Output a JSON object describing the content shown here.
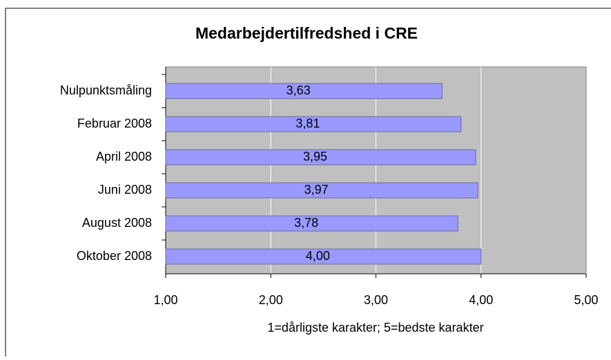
{
  "chart_data": {
    "type": "hbar",
    "title": "Medarbejdertilfredshed i CRE",
    "x_label": "1=dårligste karakter; 5=bedste karakter",
    "categories": [
      "Nulpunktsmåling",
      "Februar 2008",
      "April 2008",
      "Juni 2008",
      "August 2008",
      "Oktober 2008"
    ],
    "values": [
      3.63,
      3.81,
      3.95,
      3.97,
      3.78,
      4.0
    ],
    "value_labels": [
      "3,63",
      "3,81",
      "3,95",
      "3,97",
      "3,78",
      "4,00"
    ],
    "color": "#9999ff",
    "xlim": [
      1,
      5
    ],
    "xticks": [
      {
        "value": 1,
        "label": "1,00"
      },
      {
        "value": 2,
        "label": "2,00"
      },
      {
        "value": 3,
        "label": "3,00"
      },
      {
        "value": 4,
        "label": "4,00"
      },
      {
        "value": 5,
        "label": "5,00"
      }
    ],
    "grid": true
  }
}
